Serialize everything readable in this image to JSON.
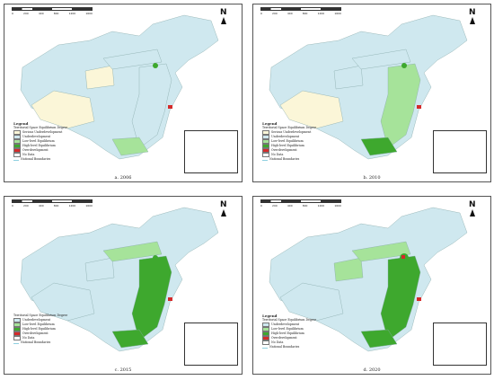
{
  "panels": [
    {
      "caption": "a. 2006",
      "scale_ticks": [
        "0",
        "200",
        "400",
        "800",
        "1200",
        "1600"
      ],
      "scale_unit": "Km",
      "north": "N",
      "legend": {
        "title": "Legend",
        "subtitle": "Territorial Space Equilibrium Degree",
        "items": [
          "Serious Underdevelopment",
          "Underdevelopment",
          "Low-level Equilibrium",
          "High-level Equilibrium",
          "Overdevelopment",
          "No Data",
          "National Boundaries"
        ]
      }
    },
    {
      "caption": "b. 2010",
      "scale_ticks": [
        "0",
        "200",
        "400",
        "800",
        "1200",
        "1600"
      ],
      "scale_unit": "Km",
      "north": "N",
      "legend": {
        "title": "Legend",
        "subtitle": "Territorial Space Equilibrium Degree",
        "items": [
          "Serious Underdevelopment",
          "Underdevelopment",
          "Low-level Equilibrium",
          "High-level Equilibrium",
          "Overdevelopment",
          "No Data",
          "National Boundaries"
        ]
      }
    },
    {
      "caption": "c. 2015",
      "scale_ticks": [
        "0",
        "200",
        "400",
        "800",
        "1200",
        "1600"
      ],
      "scale_unit": "Km",
      "north": "N",
      "legend": {
        "title": "",
        "subtitle": "Territorial Space Equilibrium Degree",
        "items": [
          "Underdevelopment",
          "Low-level Equilibrium",
          "High-level Equilibrium",
          "Overdevelopment",
          "No Data",
          "National Boundaries"
        ]
      }
    },
    {
      "caption": "d. 2020",
      "scale_ticks": [
        "0",
        "200",
        "400",
        "800",
        "1200",
        "1600"
      ],
      "scale_unit": "Km",
      "north": "N",
      "legend": {
        "title": "Legend",
        "subtitle": "Territorial Space Equilibrium Degree",
        "items": [
          "Underdevelopment",
          "Low-level Equilibrium",
          "High-level Equilibrium",
          "Overdevelopment",
          "No Data",
          "National Boundaries"
        ]
      }
    }
  ],
  "colors": {
    "Serious Underdevelopment": "#fbf6d8",
    "Underdevelopment": "#cfe8ef",
    "Low-level Equilibrium": "#a6e39a",
    "High-level Equilibrium": "#3ea82e",
    "Overdevelopment": "#d42a2a",
    "No Data": "#ffffff",
    "National Boundaries": "#8fd0e0"
  },
  "legend_swatch_icons": [
    "swatch-icon"
  ],
  "map_icons": [
    "north-arrow-icon",
    "scale-bar-icon",
    "inset-map-icon"
  ]
}
